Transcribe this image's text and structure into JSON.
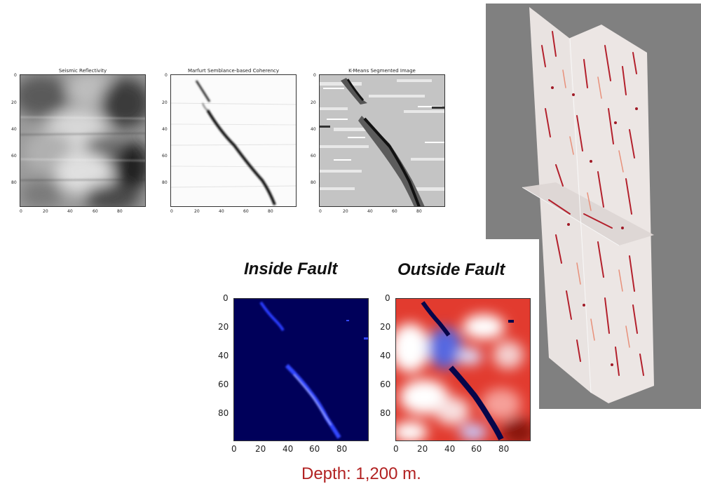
{
  "panels_top": [
    {
      "id": "seismic",
      "title": "Seismic Reflectivity"
    },
    {
      "id": "coherency",
      "title": "Marfurt Semblance-based Coherency"
    },
    {
      "id": "kmeans",
      "title": "K-Means Segmented Image"
    }
  ],
  "panels_bottom": [
    {
      "id": "inside",
      "title": "Inside Fault"
    },
    {
      "id": "outside",
      "title": "Outside Fault"
    }
  ],
  "ticks": {
    "y": [
      "0",
      "20",
      "40",
      "60",
      "80"
    ],
    "x": [
      "0",
      "20",
      "40",
      "60",
      "80"
    ]
  },
  "caption": "Depth: 1,200 m.",
  "colors": {
    "caption": "#b22222",
    "volume_bg": "#808080",
    "inside_bg": "#00005a",
    "outside_red": "#e23b2f",
    "fault_dark": "#06064a"
  }
}
